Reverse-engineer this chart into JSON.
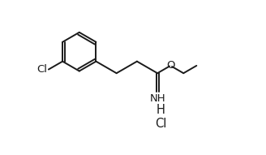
{
  "background_color": "#ffffff",
  "line_color": "#1a1a1a",
  "line_width": 1.4,
  "text_color": "#1a1a1a",
  "font_size": 9.5,
  "figsize": [
    3.28,
    1.91
  ],
  "dpi": 100,
  "labels": {
    "Cl_ring": "Cl",
    "O": "O",
    "NH": "NH",
    "H": "H",
    "Cl_salt": "Cl"
  }
}
